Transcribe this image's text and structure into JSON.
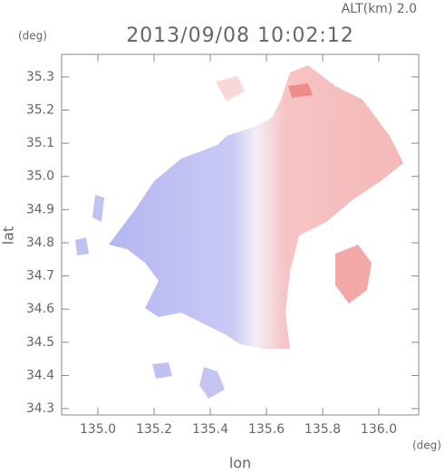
{
  "chart_data": {
    "type": "map",
    "title": "2013/09/08 10:02:12",
    "altitude_label": "ALT(km)  2.0",
    "y_unit": "(deg)",
    "x_unit": "(deg)",
    "xlabel": "lon",
    "ylabel": "lat",
    "xlim": [
      134.871,
      136.142
    ],
    "xticks": [
      {
        "value": 135,
        "label": "135.0"
      },
      135.2,
      135.4,
      135.6,
      135.8,
      {
        "value": 136,
        "label": "136.0"
      }
    ],
    "ylim": [
      34.281,
      35.368
    ],
    "yticks": [
      34.3,
      34.4,
      34.5,
      34.6,
      34.7,
      34.8,
      34.9,
      {
        "value": 35,
        "label": "35.0"
      },
      35.1,
      35.2,
      35.3
    ]
  }
}
